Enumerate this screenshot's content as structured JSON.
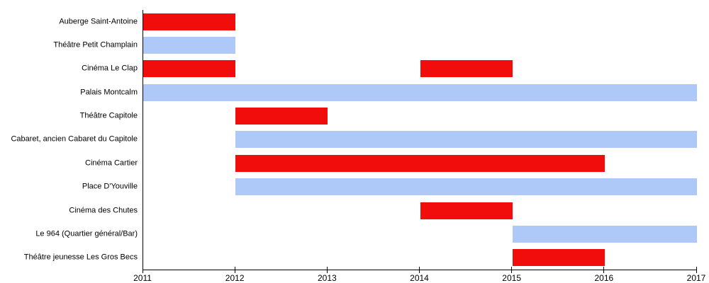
{
  "chart_data": {
    "type": "bar",
    "subtype": "gantt",
    "orientation": "horizontal",
    "title": "",
    "xlabel": "",
    "ylabel": "",
    "xlim": [
      2011,
      2017
    ],
    "x_ticks": [
      "2011",
      "2012",
      "2013",
      "2014",
      "2015",
      "2016",
      "2017"
    ],
    "grid": false,
    "legend": false,
    "colors": {
      "red": "#f20d0d",
      "blue": "#aec9f7",
      "axis": "#000000"
    },
    "rows": [
      {
        "label": "Auberge Saint-Antoine",
        "bars": [
          {
            "start": 2011,
            "end": 2012,
            "color": "red"
          }
        ]
      },
      {
        "label": "Théâtre Petit Champlain",
        "bars": [
          {
            "start": 2011,
            "end": 2012,
            "color": "blue"
          }
        ]
      },
      {
        "label": "Cinéma Le Clap",
        "bars": [
          {
            "start": 2011,
            "end": 2012,
            "color": "red"
          },
          {
            "start": 2014,
            "end": 2015,
            "color": "red"
          }
        ]
      },
      {
        "label": "Palais Montcalm",
        "bars": [
          {
            "start": 2011,
            "end": 2017,
            "color": "blue"
          }
        ]
      },
      {
        "label": "Théâtre Capitole",
        "bars": [
          {
            "start": 2012,
            "end": 2013,
            "color": "red"
          }
        ]
      },
      {
        "label": "Cabaret, ancien Cabaret du Capitole",
        "bars": [
          {
            "start": 2012,
            "end": 2017,
            "color": "blue"
          }
        ]
      },
      {
        "label": "Cinéma Cartier",
        "bars": [
          {
            "start": 2012,
            "end": 2016,
            "color": "red"
          }
        ]
      },
      {
        "label": "Place D'Youville",
        "bars": [
          {
            "start": 2012,
            "end": 2017,
            "color": "blue"
          }
        ]
      },
      {
        "label": "Cinéma des Chutes",
        "bars": [
          {
            "start": 2014,
            "end": 2015,
            "color": "red"
          }
        ]
      },
      {
        "label": "Le 964 (Quartier général/Bar)",
        "bars": [
          {
            "start": 2015,
            "end": 2017,
            "color": "blue"
          }
        ]
      },
      {
        "label": "Théâtre jeunesse Les Gros Becs",
        "bars": [
          {
            "start": 2015,
            "end": 2016,
            "color": "red"
          }
        ]
      }
    ]
  }
}
